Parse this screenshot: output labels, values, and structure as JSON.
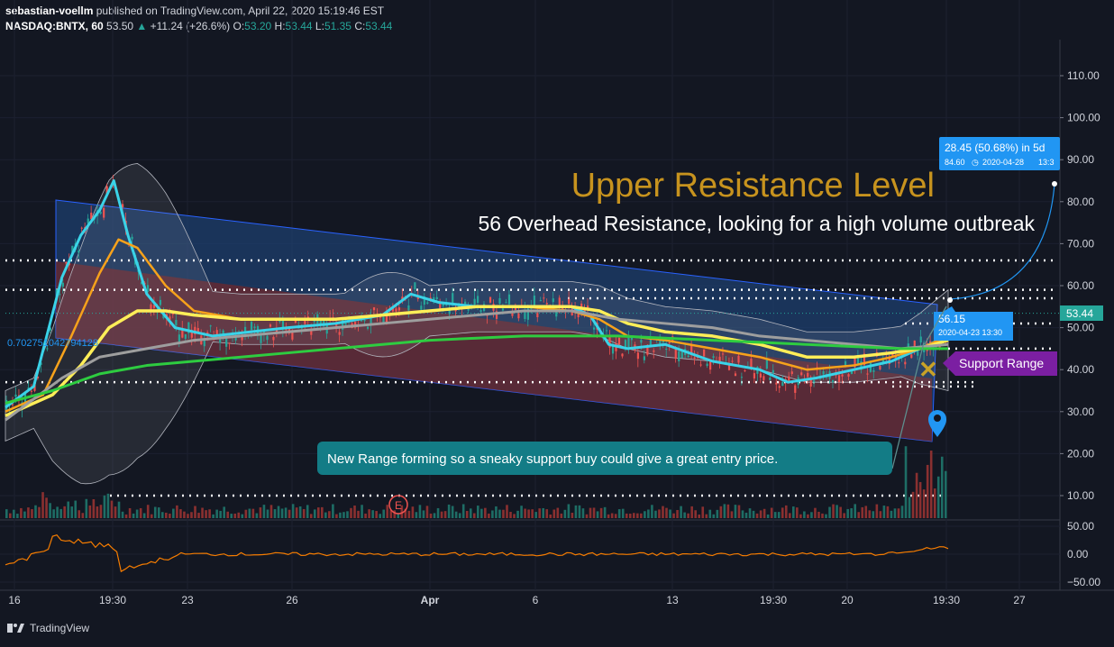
{
  "header": {
    "author": "sebastian-voellm",
    "published": "published on TradingView.com, April 22, 2020 15:19:46 EST",
    "symbol": "NASDAQ:BNTX, 60",
    "last": "53.50",
    "change": "+11.24 (+26.6%)",
    "o_label": "O:",
    "o": "53.20",
    "h_label": "H:",
    "h": "53.44",
    "l_label": "L:",
    "l": "51.35",
    "c_label": "C:",
    "c": "53.44"
  },
  "footer": {
    "brand": "TradingView",
    "logo_icon": "tradingview-logo-icon"
  },
  "colors": {
    "background": "#131722",
    "bull": "#26a69a",
    "bear": "#ef5350",
    "ema_cyan": "#3ad3e8",
    "ema_orange": "#f7a21b",
    "ema_yellow": "#ffee58",
    "ema_gray": "#9e9e9e",
    "ema_green": "#2ecc40",
    "bollinger": "#b2b5be",
    "oscillator": "#f57c00",
    "channel_blue": "#1e88e5"
  },
  "chart_data": {
    "type": "candlestick",
    "y_axis_ticks": [
      "110.00",
      "100.00",
      "90.00",
      "80.00",
      "70.00",
      "60.00",
      "50.00",
      "40.00",
      "30.00",
      "20.00",
      "10.00"
    ],
    "ylim": [
      5,
      116
    ],
    "x_axis_ticks": [
      "16",
      "19:30",
      "23",
      "26",
      "Apr",
      "6",
      "13",
      "19:30",
      "20",
      "19:30",
      "27"
    ],
    "price_label": "53.44",
    "oscillator_ticks": [
      "50.00",
      "0.00",
      "−50.00"
    ],
    "oscillator_last": 10,
    "left_label": "0.702751042794128",
    "horizontal_levels": [
      66,
      59,
      57,
      51,
      45,
      37,
      36,
      10
    ],
    "projection": {
      "text": "28.45 (50.68%) in 5d",
      "subtext": "84.60",
      "date": "2020-04-28",
      "time": "13:3",
      "target": 84.6
    },
    "price_tag": {
      "value": "56.15",
      "date": "2020-04-23 13:30"
    },
    "annotations": {
      "title": "Upper Resistance Level",
      "subtitle": "56 Overhead Resistance, looking for a high volume outbreak",
      "support": "Support Range",
      "note": "New Range forming so a sneaky support buy  could give a great entry price.",
      "earnings": "E"
    },
    "series": [
      {
        "name": "EMA cyan",
        "x": [
          0,
          0.03,
          0.06,
          0.08,
          0.1,
          0.115,
          0.13,
          0.15,
          0.18,
          0.22,
          0.26,
          0.3,
          0.35,
          0.4,
          0.43,
          0.46,
          0.5,
          0.55,
          0.6,
          0.62,
          0.64,
          0.66,
          0.7,
          0.75,
          0.8,
          0.83,
          0.86,
          0.9,
          0.94,
          0.97,
          1.0
        ],
        "y": [
          31,
          36,
          62,
          72,
          78,
          85,
          72,
          58,
          50,
          48,
          49,
          50,
          51,
          53,
          58,
          56,
          55,
          55,
          55,
          53,
          46,
          45,
          46,
          42,
          40,
          37,
          38,
          40,
          42,
          45,
          48
        ]
      },
      {
        "name": "EMA orange",
        "x": [
          0,
          0.04,
          0.07,
          0.1,
          0.12,
          0.14,
          0.17,
          0.2,
          0.25,
          0.3,
          0.35,
          0.4,
          0.45,
          0.5,
          0.55,
          0.6,
          0.63,
          0.66,
          0.7,
          0.75,
          0.8,
          0.85,
          0.9,
          0.94,
          0.97,
          1.0
        ],
        "y": [
          30,
          34,
          48,
          63,
          71,
          69,
          60,
          54,
          52,
          52,
          52,
          53,
          54,
          55,
          55,
          54,
          52,
          48,
          47,
          45,
          43,
          40,
          41,
          43,
          45,
          48
        ]
      },
      {
        "name": "EMA yellow",
        "x": [
          0,
          0.05,
          0.08,
          0.11,
          0.14,
          0.17,
          0.2,
          0.25,
          0.3,
          0.35,
          0.4,
          0.45,
          0.5,
          0.55,
          0.6,
          0.63,
          0.66,
          0.7,
          0.75,
          0.8,
          0.85,
          0.9,
          0.94,
          0.97,
          1.0
        ],
        "y": [
          29,
          34,
          41,
          50,
          54,
          54,
          53,
          52,
          52,
          52,
          53,
          54,
          55,
          55,
          55,
          54,
          51,
          49,
          48,
          46,
          43,
          43,
          44,
          45,
          47
        ]
      },
      {
        "name": "EMA gray",
        "x": [
          0,
          0.06,
          0.1,
          0.15,
          0.2,
          0.25,
          0.3,
          0.35,
          0.4,
          0.45,
          0.5,
          0.55,
          0.6,
          0.65,
          0.7,
          0.75,
          0.8,
          0.85,
          0.9,
          0.95,
          1.0
        ],
        "y": [
          28,
          38,
          43,
          45,
          47,
          48,
          49,
          50,
          51,
          52,
          53,
          54,
          54,
          52,
          51,
          50,
          48,
          47,
          46,
          45,
          46
        ]
      },
      {
        "name": "EMA green",
        "x": [
          0,
          0.05,
          0.1,
          0.15,
          0.2,
          0.25,
          0.3,
          0.35,
          0.4,
          0.45,
          0.5,
          0.55,
          0.6,
          0.65,
          0.7,
          0.75,
          0.8,
          0.85,
          0.9,
          0.95,
          1.0
        ],
        "y": [
          32,
          35,
          39,
          41,
          42,
          43,
          44,
          45,
          46,
          47,
          47.5,
          48,
          48,
          48,
          47.5,
          47,
          46.5,
          46,
          45.5,
          45,
          45
        ]
      }
    ]
  }
}
